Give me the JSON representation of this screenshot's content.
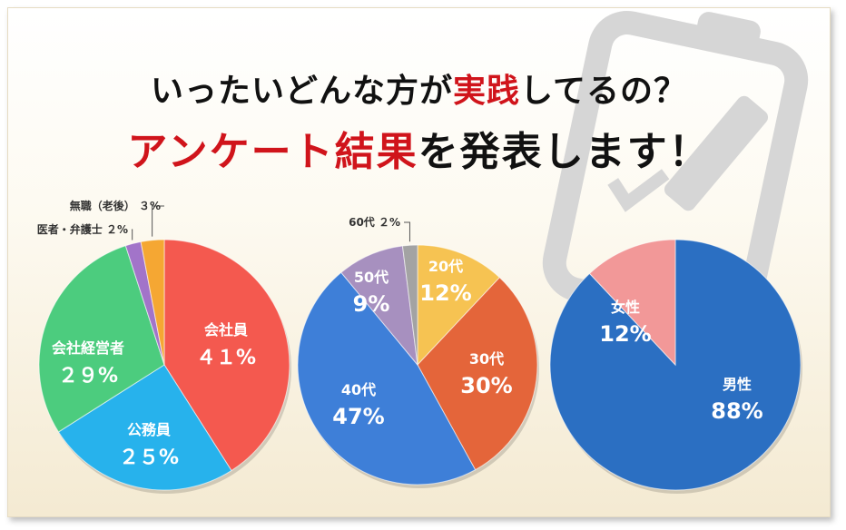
{
  "heading": {
    "line1_pre": "いったいどんな方が",
    "line1_accent": "実践",
    "line1_post": "してるの？",
    "line2_accent": "アンケート結果",
    "line2_post": "を発表します！"
  },
  "colors": {
    "accent_red": "#d0141b"
  },
  "chart_data": [
    {
      "type": "pie",
      "title": "",
      "slices": [
        {
          "label": "会社員",
          "value": 41,
          "display": "４１%",
          "color": "#f4594f"
        },
        {
          "label": "公務員",
          "value": 25,
          "display": "２５%",
          "color": "#27b2ec"
        },
        {
          "label": "会社経営者",
          "value": 29,
          "display": "２９%",
          "color": "#4ccc7e"
        },
        {
          "label": "医者・弁護士",
          "value": 2,
          "display": "２%",
          "color": "#a274c9"
        },
        {
          "label": "無職（老後）",
          "value": 3,
          "display": "３%",
          "color": "#f5a733"
        }
      ]
    },
    {
      "type": "pie",
      "title": "",
      "slices": [
        {
          "label": "20代",
          "value": 12,
          "display": "12%",
          "color": "#f6c352"
        },
        {
          "label": "30代",
          "value": 30,
          "display": "30%",
          "color": "#e4653a"
        },
        {
          "label": "40代",
          "value": 47,
          "display": "47%",
          "color": "#3e7fd8"
        },
        {
          "label": "50代",
          "value": 9,
          "display": "9%",
          "color": "#a790bf"
        },
        {
          "label": "60代",
          "value": 2,
          "display": "２%",
          "color": "#a3a3a3"
        }
      ]
    },
    {
      "type": "pie",
      "title": "",
      "slices": [
        {
          "label": "男性",
          "value": 88,
          "display": "88%",
          "color": "#2b6fc2"
        },
        {
          "label": "女性",
          "value": 12,
          "display": "12%",
          "color": "#f29898"
        }
      ]
    }
  ]
}
